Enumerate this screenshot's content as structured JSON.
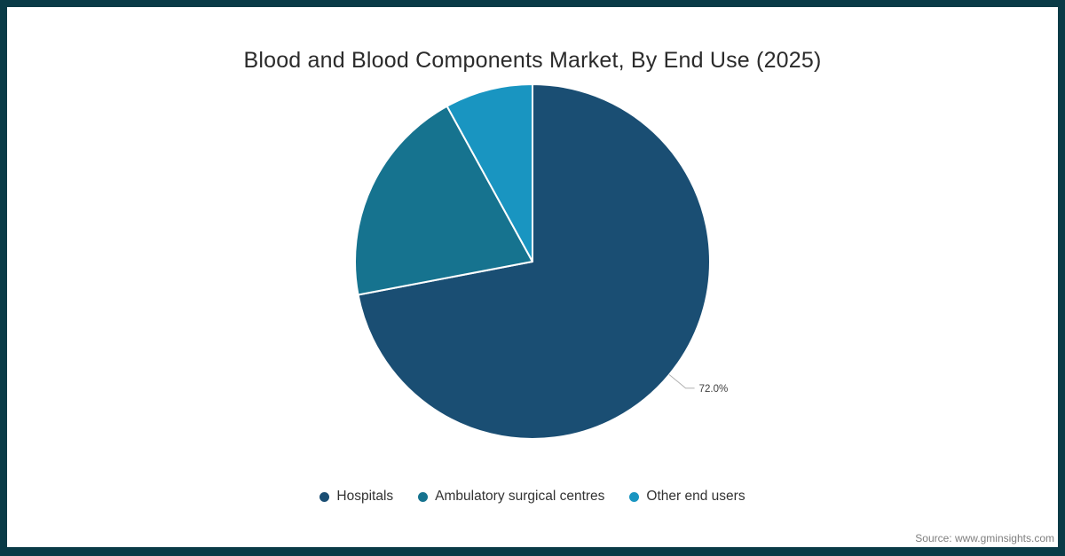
{
  "title": "Blood and Blood Components Market, By End Use (2025)",
  "source": "Source: www.gminsights.com",
  "frame": {
    "border_color": "#0a3b47",
    "background": "#ffffff"
  },
  "text_colors": {
    "title": "#2b2b2b",
    "legend": "#333333",
    "data_label": "#404040",
    "source": "#7f7f7f",
    "leader_line": "#b0b0b0"
  },
  "chart_data": {
    "type": "pie",
    "title": "Blood and Blood Components Market, By End Use (2025)",
    "start_angle_deg": 0,
    "direction": "clockwise",
    "legend_position": "bottom",
    "slice_stroke": "#ffffff",
    "categories": [
      "Hospitals",
      "Ambulatory surgical centres",
      "Other end users"
    ],
    "values": [
      72.0,
      20.0,
      8.0
    ],
    "slices": [
      {
        "label": "Hospitals",
        "value": 72.0,
        "color": "#1a4e73",
        "data_label": "72.0%"
      },
      {
        "label": "Ambulatory surgical centres",
        "value": 20.0,
        "color": "#16738f",
        "data_label": ""
      },
      {
        "label": "Other end users",
        "value": 8.0,
        "color": "#1995c1",
        "data_label": ""
      }
    ]
  }
}
